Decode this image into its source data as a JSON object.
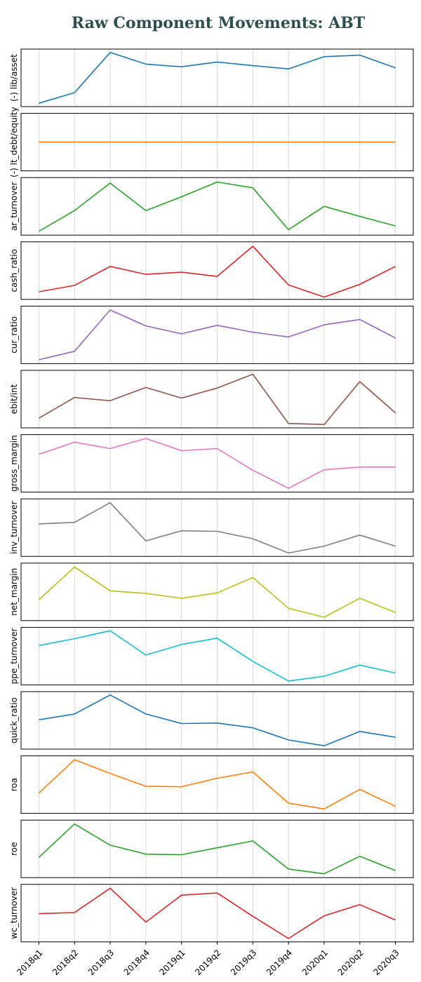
{
  "title": "Raw Component Movements: ABT",
  "chart_data": {
    "type": "line",
    "title": "Raw Component Movements: ABT",
    "x": [
      "2018q1",
      "2018q2",
      "2018q3",
      "2018q4",
      "2019q1",
      "2019q2",
      "2019q3",
      "2019q4",
      "2020q1",
      "2020q2",
      "2020q3"
    ],
    "grid": "vertical",
    "y_axis_ticks": "hidden",
    "series": [
      {
        "name": "(-) lib/asset",
        "color": "#1f77b4",
        "values": [
          0.02,
          0.22,
          0.98,
          0.76,
          0.71,
          0.8,
          0.73,
          0.67,
          0.9,
          0.93,
          0.69
        ]
      },
      {
        "name": "(-) lt_debt/equity",
        "color": "#ff7f0e",
        "values": [
          0.5,
          0.5,
          0.5,
          0.5,
          0.5,
          0.5,
          0.5,
          0.5,
          0.5,
          0.5,
          0.5
        ]
      },
      {
        "name": "ar_turnover",
        "color": "#2ca02c",
        "values": [
          0.03,
          0.42,
          0.94,
          0.42,
          0.68,
          0.96,
          0.85,
          0.06,
          0.5,
          0.31,
          0.13
        ]
      },
      {
        "name": "cash_ratio",
        "color": "#d62728",
        "values": [
          0.1,
          0.22,
          0.58,
          0.43,
          0.47,
          0.39,
          0.96,
          0.23,
          0.0,
          0.24,
          0.58
        ]
      },
      {
        "name": "cur_ratio",
        "color": "#9467bd",
        "values": [
          0.03,
          0.19,
          0.97,
          0.67,
          0.52,
          0.68,
          0.55,
          0.46,
          0.69,
          0.79,
          0.44
        ]
      },
      {
        "name": "ebit/int",
        "color": "#8c564b",
        "values": [
          0.14,
          0.53,
          0.47,
          0.72,
          0.52,
          0.71,
          0.97,
          0.04,
          0.02,
          0.83,
          0.24
        ]
      },
      {
        "name": "gross_margin",
        "color": "#e377c2",
        "values": [
          0.67,
          0.9,
          0.78,
          0.97,
          0.74,
          0.78,
          0.37,
          0.03,
          0.38,
          0.43,
          0.43
        ]
      },
      {
        "name": "inv_turnover",
        "color": "#7f7f7f",
        "values": [
          0.57,
          0.6,
          0.97,
          0.25,
          0.44,
          0.43,
          0.29,
          0.02,
          0.15,
          0.36,
          0.15
        ]
      },
      {
        "name": "net_margin",
        "color": "#bcbd22",
        "values": [
          0.35,
          0.97,
          0.52,
          0.47,
          0.38,
          0.48,
          0.77,
          0.19,
          0.02,
          0.38,
          0.11
        ]
      },
      {
        "name": "ppe_turnover",
        "color": "#17becf",
        "values": [
          0.7,
          0.83,
          0.98,
          0.52,
          0.72,
          0.84,
          0.4,
          0.03,
          0.12,
          0.33,
          0.18
        ]
      },
      {
        "name": "quick_ratio",
        "color": "#1f77b4",
        "values": [
          0.51,
          0.62,
          0.98,
          0.62,
          0.44,
          0.45,
          0.36,
          0.13,
          0.02,
          0.29,
          0.18
        ]
      },
      {
        "name": "roa",
        "color": "#ff7f0e",
        "values": [
          0.34,
          0.97,
          0.71,
          0.47,
          0.46,
          0.62,
          0.74,
          0.15,
          0.04,
          0.41,
          0.09
        ]
      },
      {
        "name": "roe",
        "color": "#2ca02c",
        "values": [
          0.34,
          0.97,
          0.57,
          0.4,
          0.39,
          0.52,
          0.65,
          0.12,
          0.03,
          0.36,
          0.09
        ]
      },
      {
        "name": "wc_turnover",
        "color": "#d62728",
        "values": [
          0.49,
          0.51,
          0.97,
          0.33,
          0.84,
          0.88,
          0.44,
          0.02,
          0.45,
          0.66,
          0.37
        ]
      }
    ]
  }
}
